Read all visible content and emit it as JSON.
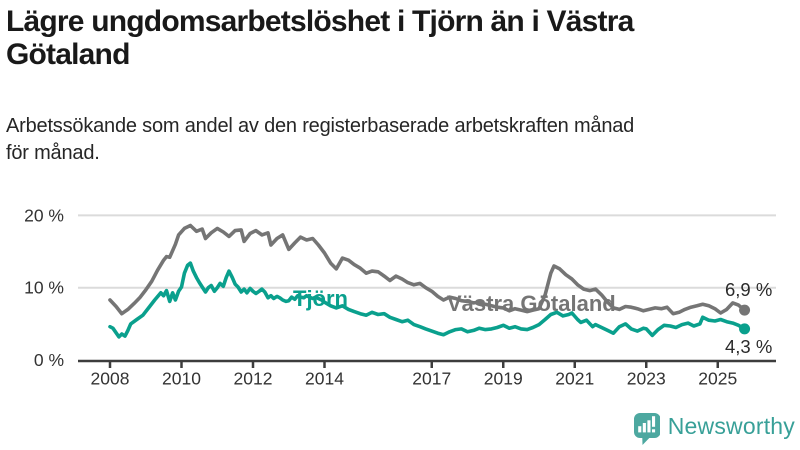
{
  "header": {
    "title_lines": [
      "Lägre ungdomsarbetslöshet i Tjörn än i Västra",
      "Götaland"
    ],
    "subtitle_lines": [
      "Arbetssökande som andel av den registerbaserade arbetskraften månad",
      "för månad."
    ]
  },
  "colors": {
    "tjorn": "#0aa08d",
    "vastra_gotaland": "#757575",
    "grid": "#dbdbdb",
    "axis": "#3d3d3d",
    "tick_label": "#333333",
    "end_label": "#2b2b2b",
    "brand": "#38a098",
    "brand_icon": "#4da8a0"
  },
  "chart_data": {
    "type": "line",
    "grid": "horizontal",
    "legend": "inline-labels",
    "unit": "%",
    "x_range": [
      2007.6,
      2026.2
    ],
    "y_axis": {
      "range": [
        0,
        21.5
      ],
      "ticks": [
        0,
        10,
        20
      ],
      "labels": [
        "0 %",
        "10 %",
        "20 %"
      ]
    },
    "x_axis": {
      "ticks": [
        2008,
        2010,
        2012,
        2014,
        2017,
        2019,
        2021,
        2023,
        2025
      ],
      "labels": [
        "2008",
        "2010",
        "2012",
        "2014",
        "2017",
        "2019",
        "2021",
        "2023",
        "2025"
      ]
    },
    "series": [
      {
        "name": "Västra Götaland",
        "color": "#757575",
        "end_label": "6,9 %",
        "end_value": 6.9,
        "x": [
          2008.0,
          2008.17,
          2008.33,
          2008.5,
          2008.67,
          2008.83,
          2009.0,
          2009.17,
          2009.33,
          2009.5,
          2009.58,
          2009.67,
          2009.83,
          2009.92,
          2010.08,
          2010.25,
          2010.42,
          2010.58,
          2010.67,
          2010.83,
          2011.0,
          2011.17,
          2011.33,
          2011.5,
          2011.67,
          2011.75,
          2011.92,
          2012.08,
          2012.25,
          2012.42,
          2012.5,
          2012.67,
          2012.83,
          2013.0,
          2013.17,
          2013.33,
          2013.5,
          2013.67,
          2013.83,
          2014.0,
          2014.17,
          2014.33,
          2014.5,
          2014.67,
          2014.83,
          2015.0,
          2015.17,
          2015.33,
          2015.5,
          2015.67,
          2015.83,
          2016.0,
          2016.17,
          2016.33,
          2016.5,
          2016.67,
          2016.83,
          2017.0,
          2017.17,
          2017.33,
          2017.5,
          2017.67,
          2017.83,
          2018.0,
          2018.17,
          2018.33,
          2018.5,
          2018.67,
          2018.83,
          2019.0,
          2019.17,
          2019.33,
          2019.5,
          2019.67,
          2019.83,
          2020.0,
          2020.17,
          2020.33,
          2020.42,
          2020.58,
          2020.75,
          2020.92,
          2021.08,
          2021.25,
          2021.42,
          2021.58,
          2021.75,
          2021.92,
          2022.08,
          2022.25,
          2022.42,
          2022.58,
          2022.75,
          2022.92,
          2023.08,
          2023.25,
          2023.42,
          2023.58,
          2023.75,
          2023.92,
          2024.08,
          2024.25,
          2024.42,
          2024.58,
          2024.75,
          2024.92,
          2025.08,
          2025.25,
          2025.42,
          2025.58,
          2025.75
        ],
        "values": [
          8.3,
          7.4,
          6.4,
          7.0,
          7.8,
          8.6,
          9.7,
          10.9,
          12.4,
          13.8,
          14.3,
          14.2,
          16.0,
          17.3,
          18.2,
          18.6,
          17.8,
          18.1,
          16.8,
          17.6,
          18.2,
          17.7,
          17.1,
          17.9,
          18.0,
          16.4,
          17.5,
          17.9,
          17.3,
          17.6,
          15.9,
          16.8,
          17.3,
          15.3,
          16.2,
          17.0,
          16.6,
          16.8,
          15.9,
          14.8,
          13.4,
          12.6,
          14.1,
          13.8,
          13.2,
          12.7,
          12.0,
          12.3,
          12.2,
          11.6,
          11.0,
          11.6,
          11.2,
          10.7,
          10.4,
          10.6,
          10.0,
          9.5,
          8.8,
          8.3,
          8.7,
          8.5,
          8.2,
          8.1,
          7.9,
          8.0,
          7.7,
          7.5,
          7.3,
          7.2,
          6.8,
          7.1,
          6.9,
          6.7,
          6.9,
          7.1,
          9.0,
          12.0,
          13.0,
          12.6,
          11.8,
          11.2,
          10.4,
          9.8,
          9.6,
          9.8,
          9.0,
          8.0,
          7.2,
          7.0,
          7.4,
          7.3,
          7.1,
          6.8,
          7.0,
          7.2,
          7.1,
          7.3,
          6.4,
          6.6,
          7.0,
          7.3,
          7.5,
          7.7,
          7.5,
          7.1,
          6.5,
          7.0,
          7.9,
          7.6,
          6.9
        ]
      },
      {
        "name": "Tjörn",
        "color": "#0aa08d",
        "end_label": "4,3 %",
        "end_value": 4.3,
        "x": [
          2008.0,
          2008.08,
          2008.25,
          2008.33,
          2008.42,
          2008.5,
          2008.58,
          2008.75,
          2008.92,
          2009.08,
          2009.25,
          2009.42,
          2009.5,
          2009.58,
          2009.67,
          2009.75,
          2009.83,
          2009.92,
          2010.0,
          2010.08,
          2010.17,
          2010.25,
          2010.33,
          2010.42,
          2010.5,
          2010.58,
          2010.67,
          2010.75,
          2010.83,
          2010.92,
          2011.0,
          2011.08,
          2011.17,
          2011.25,
          2011.33,
          2011.42,
          2011.5,
          2011.58,
          2011.67,
          2011.75,
          2011.83,
          2011.92,
          2012.0,
          2012.08,
          2012.17,
          2012.25,
          2012.33,
          2012.42,
          2012.5,
          2012.58,
          2012.67,
          2012.75,
          2012.83,
          2012.92,
          2013.0,
          2013.08,
          2013.17,
          2013.25,
          2013.33,
          2013.42,
          2013.5,
          2013.58,
          2013.67,
          2013.75,
          2013.83,
          2013.92,
          2014.0,
          2014.17,
          2014.33,
          2014.5,
          2014.67,
          2014.83,
          2015.0,
          2015.17,
          2015.33,
          2015.5,
          2015.67,
          2015.83,
          2016.0,
          2016.17,
          2016.33,
          2016.5,
          2016.67,
          2016.83,
          2017.0,
          2017.17,
          2017.33,
          2017.5,
          2017.67,
          2017.83,
          2018.0,
          2018.17,
          2018.33,
          2018.5,
          2018.67,
          2018.83,
          2019.0,
          2019.17,
          2019.33,
          2019.5,
          2019.67,
          2019.83,
          2020.0,
          2020.17,
          2020.33,
          2020.5,
          2020.67,
          2020.83,
          2020.92,
          2021.08,
          2021.17,
          2021.33,
          2021.5,
          2021.58,
          2021.75,
          2021.92,
          2022.08,
          2022.25,
          2022.42,
          2022.58,
          2022.75,
          2022.92,
          2023.0,
          2023.17,
          2023.33,
          2023.5,
          2023.67,
          2023.83,
          2024.0,
          2024.17,
          2024.33,
          2024.5,
          2024.58,
          2024.75,
          2024.92,
          2025.08,
          2025.25,
          2025.42,
          2025.58,
          2025.75
        ],
        "values": [
          4.6,
          4.4,
          3.2,
          3.6,
          3.3,
          4.1,
          5.0,
          5.6,
          6.2,
          7.2,
          8.3,
          9.3,
          8.9,
          9.6,
          8.1,
          9.3,
          8.3,
          9.5,
          10.1,
          12.0,
          13.1,
          13.4,
          12.3,
          11.4,
          10.7,
          10.1,
          9.4,
          10.0,
          10.3,
          9.5,
          10.0,
          10.6,
          10.2,
          11.4,
          12.3,
          11.4,
          10.5,
          10.1,
          9.4,
          9.8,
          9.3,
          9.9,
          9.5,
          9.2,
          9.5,
          9.8,
          9.4,
          8.6,
          8.9,
          8.5,
          8.8,
          8.6,
          8.3,
          8.1,
          8.2,
          8.7,
          8.4,
          8.9,
          8.7,
          8.6,
          8.9,
          8.7,
          8.5,
          8.7,
          8.5,
          8.3,
          8.0,
          7.5,
          7.2,
          7.5,
          7.0,
          6.7,
          6.4,
          6.2,
          6.6,
          6.3,
          6.4,
          5.9,
          5.6,
          5.3,
          5.5,
          4.9,
          4.6,
          4.3,
          4.0,
          3.7,
          3.5,
          3.9,
          4.2,
          4.3,
          3.9,
          4.1,
          4.4,
          4.2,
          4.3,
          4.5,
          4.8,
          4.4,
          4.6,
          4.3,
          4.2,
          4.5,
          4.9,
          5.6,
          6.3,
          6.6,
          6.1,
          6.3,
          6.5,
          5.6,
          5.2,
          5.5,
          4.6,
          4.9,
          4.5,
          4.1,
          3.7,
          4.6,
          5.0,
          4.3,
          4.0,
          4.4,
          4.3,
          3.4,
          4.2,
          4.8,
          4.7,
          4.5,
          4.9,
          5.1,
          4.7,
          5.0,
          5.9,
          5.5,
          5.4,
          5.6,
          5.3,
          5.1,
          4.8,
          4.3
        ]
      }
    ]
  },
  "branding": {
    "name": "Newsworthy",
    "icon": "bar-chart-speech-bubble-icon"
  }
}
